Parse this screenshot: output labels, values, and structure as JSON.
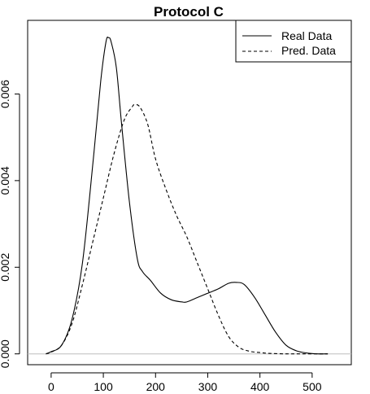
{
  "chart_data": {
    "type": "line",
    "title": "Protocol C",
    "xlabel": "",
    "ylabel": "",
    "xlim": [
      -45,
      575
    ],
    "ylim": [
      -0.00025,
      0.0077
    ],
    "x_ticks": [
      0,
      100,
      200,
      300,
      400,
      500
    ],
    "y_ticks": [
      0.0,
      0.002,
      0.004,
      0.006
    ],
    "y_tick_labels": [
      "0.000",
      "0.002",
      "0.004",
      "0.006"
    ],
    "grid": false,
    "legend_position": "top-right",
    "baseline_color": "#bebebe",
    "series": [
      {
        "name": "Real Data",
        "line_style": "solid",
        "color": "#000000",
        "x": [
          -10,
          0,
          20,
          40,
          60,
          80,
          95,
          105,
          110,
          115,
          125,
          135,
          150,
          165,
          175,
          190,
          210,
          230,
          250,
          260,
          280,
          300,
          320,
          340,
          355,
          370,
          390,
          410,
          430,
          450,
          470,
          490,
          510,
          530
        ],
        "y": [
          0.0,
          5e-05,
          0.0002,
          0.0008,
          0.0021,
          0.0044,
          0.0063,
          0.0072,
          0.0073,
          0.0072,
          0.0066,
          0.0053,
          0.0035,
          0.0022,
          0.0019,
          0.0017,
          0.0014,
          0.00125,
          0.0012,
          0.0012,
          0.0013,
          0.0014,
          0.0015,
          0.00163,
          0.00165,
          0.0016,
          0.0013,
          0.0009,
          0.0005,
          0.0002,
          7e-05,
          2e-05,
          0.0,
          0.0
        ]
      },
      {
        "name": "Pred. Data",
        "line_style": "dashed",
        "color": "#000000",
        "x": [
          -10,
          0,
          20,
          40,
          60,
          80,
          100,
          120,
          140,
          155,
          160,
          170,
          185,
          200,
          220,
          240,
          260,
          280,
          300,
          320,
          340,
          360,
          380,
          400,
          420,
          450,
          480,
          510,
          530
        ],
        "y": [
          0.0,
          4e-05,
          0.0002,
          0.0007,
          0.0016,
          0.0026,
          0.0036,
          0.0046,
          0.0054,
          0.0057,
          0.00575,
          0.0057,
          0.0053,
          0.0045,
          0.0038,
          0.0032,
          0.0027,
          0.0021,
          0.0015,
          0.0009,
          0.0004,
          0.00015,
          6e-05,
          3e-05,
          1e-05,
          0.0,
          0.0,
          0.0,
          0.0
        ]
      }
    ]
  }
}
